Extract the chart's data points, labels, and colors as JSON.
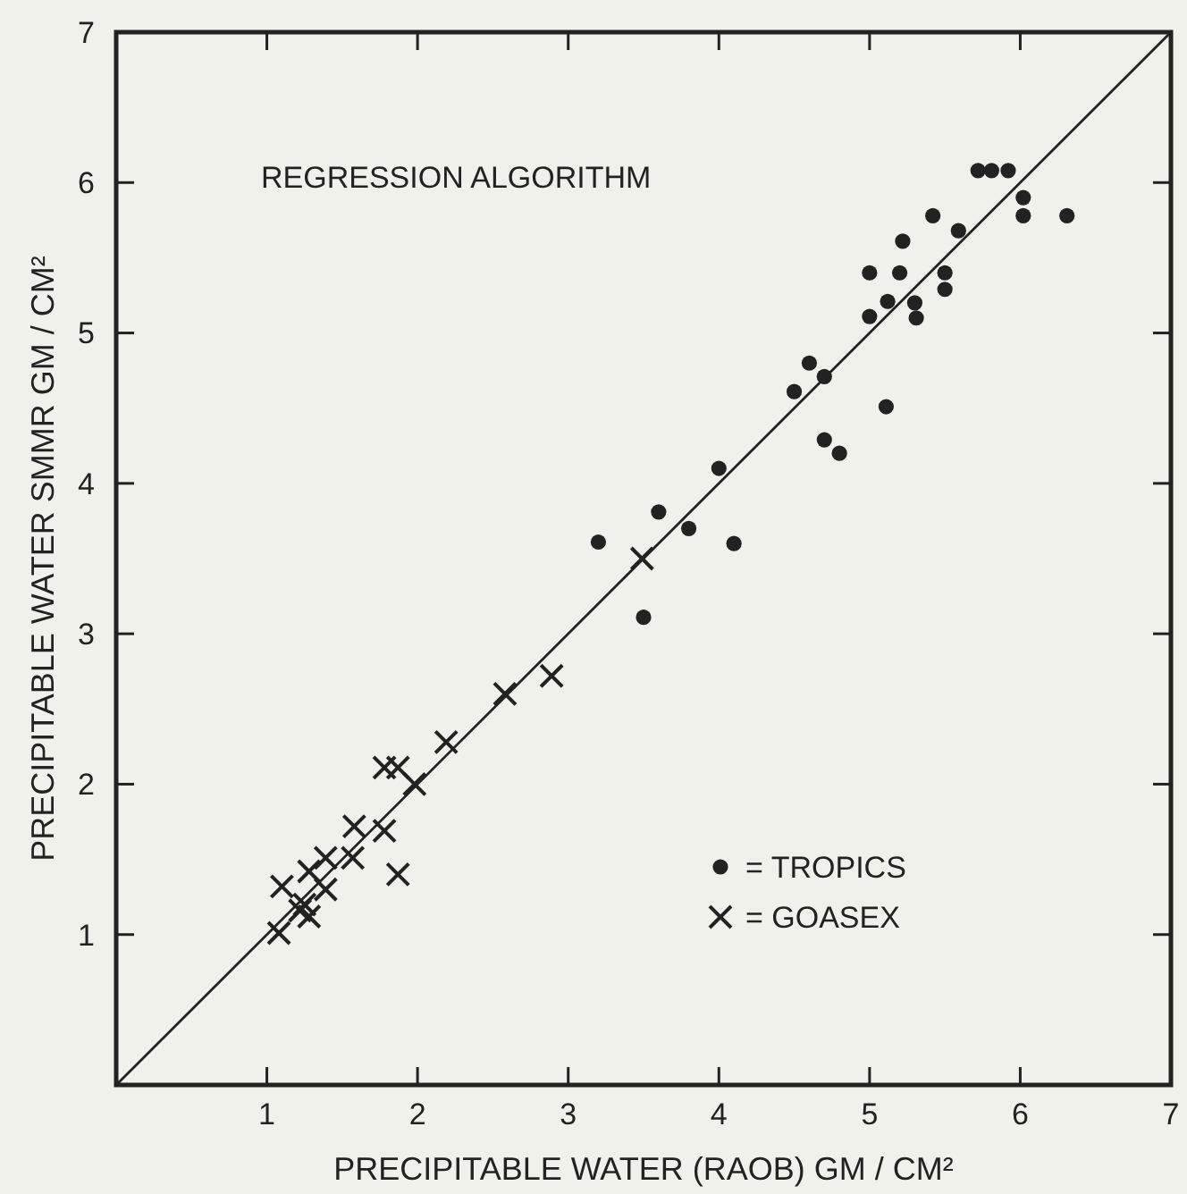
{
  "chart_data": {
    "type": "scatter",
    "title": "REGRESSION ALGORITHM",
    "xlabel": "PRECIPITABLE WATER (RAOB) GM / CM²",
    "ylabel": "PRECIPITABLE WATER SMMR GM / CM²",
    "xlim": [
      0,
      7
    ],
    "ylim": [
      0,
      7
    ],
    "xticks": [
      1,
      2,
      3,
      4,
      5,
      6,
      7
    ],
    "yticks": [
      1,
      2,
      3,
      4,
      5,
      6,
      7
    ],
    "grid": false,
    "legend": "bottom right",
    "series": [
      {
        "name": "= TROPICS",
        "marker": "circle",
        "color": "#222222",
        "x": [
          5.72,
          5.81,
          5.92,
          6.02,
          6.02,
          6.31,
          5.42,
          5.59,
          5.22,
          5.0,
          5.2,
          5.5,
          5.5,
          5.12,
          5.3,
          5.31,
          5.0,
          4.5,
          4.6,
          4.7,
          5.11,
          4.7,
          4.8,
          4.0,
          3.6,
          3.8,
          3.2,
          4.1,
          3.5
        ],
        "values": [
          6.08,
          6.08,
          6.08,
          5.9,
          5.78,
          5.78,
          5.78,
          5.68,
          5.61,
          5.4,
          5.4,
          5.4,
          5.29,
          5.21,
          5.2,
          5.1,
          5.11,
          4.61,
          4.8,
          4.71,
          4.51,
          4.29,
          4.2,
          4.1,
          3.81,
          3.7,
          3.61,
          3.6,
          3.11
        ]
      },
      {
        "name": "= GOASEX",
        "marker": "cross",
        "color": "#222222",
        "x": [
          3.49,
          2.89,
          2.58,
          2.19,
          1.78,
          1.87,
          1.98,
          1.58,
          1.78,
          1.87,
          1.1,
          1.28,
          1.39,
          1.57,
          1.39,
          1.22,
          1.28,
          1.08,
          1.25
        ],
        "values": [
          3.5,
          2.72,
          2.6,
          2.28,
          2.11,
          2.11,
          2.0,
          1.72,
          1.69,
          1.4,
          1.32,
          1.42,
          1.51,
          1.51,
          1.3,
          1.16,
          1.12,
          1.01,
          1.2
        ]
      },
      {
        "type": "line",
        "marker": "none",
        "line_style": "solid",
        "color": "#222222",
        "x": [
          0,
          7
        ],
        "values": [
          0,
          7
        ]
      }
    ]
  }
}
